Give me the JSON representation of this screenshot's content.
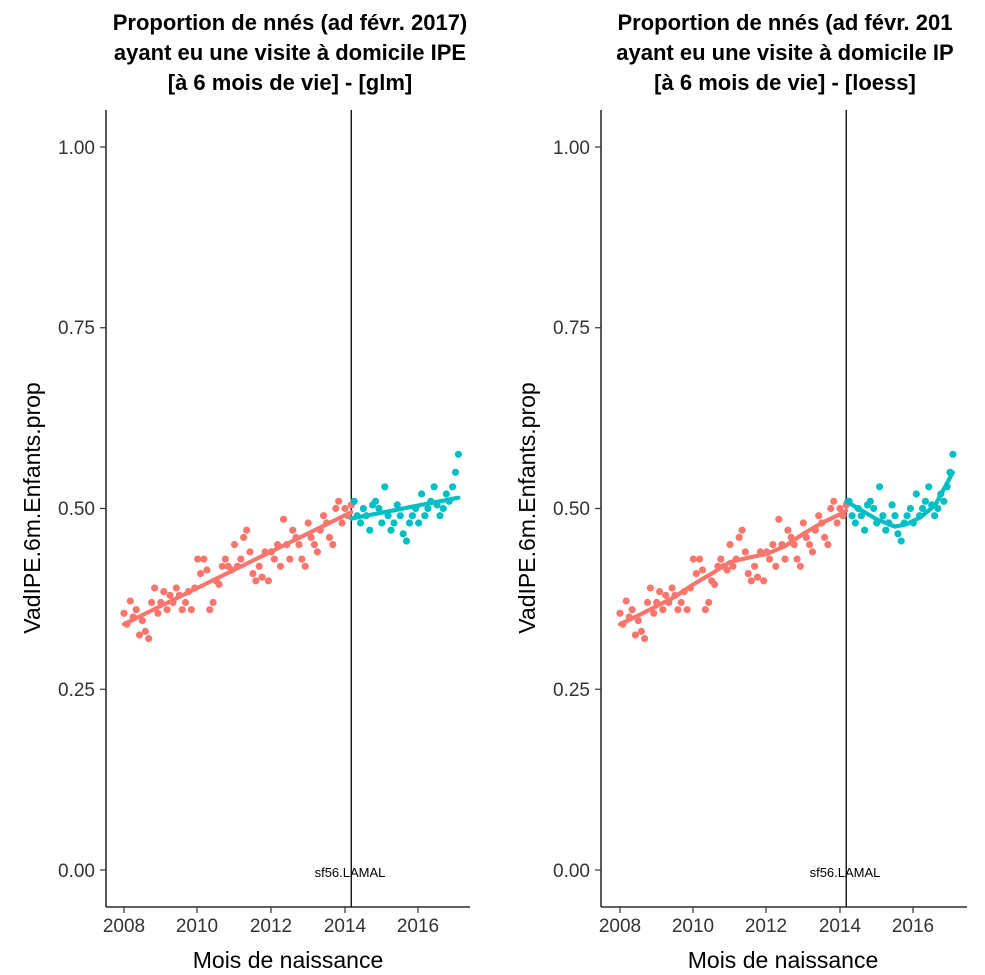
{
  "chart_data": [
    {
      "type": "scatter",
      "title": [
        "Proportion de nnés (ad févr. 2017)",
        "ayant eu une visite à domicile IPE",
        "[à 6 mois de vie] - [glm]"
      ],
      "xlabel": "Mois de naissance",
      "ylabel": "VadIPE.6m.Enfants.prop",
      "xlim": [
        2007.6,
        2017.6
      ],
      "ylim": [
        -0.05,
        1.05
      ],
      "xticks": [
        "2008",
        "2010",
        "2012",
        "2014",
        "2016"
      ],
      "yticks": [
        "0.00",
        "0.25",
        "0.50",
        "0.75",
        "1.00"
      ],
      "grid": false,
      "legend": "none",
      "vline_x": 2014.17,
      "annotation": "sf56.LAMAL",
      "colors": {
        "before": "#F8766D",
        "after": "#00BFC4"
      },
      "series": [
        {
          "points": [
            [
              2008.0,
              0.355
            ],
            [
              2008.08,
              0.34
            ],
            [
              2008.17,
              0.372
            ],
            [
              2008.25,
              0.35
            ],
            [
              2008.33,
              0.36
            ],
            [
              2008.42,
              0.325
            ],
            [
              2008.5,
              0.345
            ],
            [
              2008.58,
              0.33
            ],
            [
              2008.67,
              0.32
            ],
            [
              2008.75,
              0.37
            ],
            [
              2008.83,
              0.39
            ],
            [
              2008.92,
              0.355
            ],
            [
              2009.0,
              0.37
            ],
            [
              2009.08,
              0.385
            ],
            [
              2009.17,
              0.36
            ],
            [
              2009.25,
              0.38
            ],
            [
              2009.33,
              0.37
            ],
            [
              2009.42,
              0.39
            ],
            [
              2009.5,
              0.38
            ],
            [
              2009.58,
              0.36
            ],
            [
              2009.67,
              0.37
            ],
            [
              2009.75,
              0.385
            ],
            [
              2009.83,
              0.36
            ],
            [
              2009.92,
              0.39
            ],
            [
              2010.0,
              0.43
            ],
            [
              2010.08,
              0.41
            ],
            [
              2010.17,
              0.43
            ],
            [
              2010.25,
              0.415
            ],
            [
              2010.33,
              0.36
            ],
            [
              2010.42,
              0.37
            ],
            [
              2010.5,
              0.4
            ],
            [
              2010.58,
              0.395
            ],
            [
              2010.67,
              0.42
            ],
            [
              2010.75,
              0.43
            ],
            [
              2010.83,
              0.42
            ],
            [
              2010.92,
              0.415
            ],
            [
              2011.0,
              0.45
            ],
            [
              2011.08,
              0.42
            ],
            [
              2011.17,
              0.43
            ],
            [
              2011.25,
              0.46
            ],
            [
              2011.33,
              0.47
            ],
            [
              2011.42,
              0.44
            ],
            [
              2011.5,
              0.41
            ],
            [
              2011.58,
              0.4
            ],
            [
              2011.67,
              0.42
            ],
            [
              2011.75,
              0.405
            ],
            [
              2011.83,
              0.44
            ],
            [
              2011.92,
              0.4
            ],
            [
              2012.0,
              0.44
            ],
            [
              2012.08,
              0.43
            ],
            [
              2012.17,
              0.45
            ],
            [
              2012.25,
              0.42
            ],
            [
              2012.33,
              0.485
            ],
            [
              2012.42,
              0.45
            ],
            [
              2012.5,
              0.43
            ],
            [
              2012.58,
              0.47
            ],
            [
              2012.67,
              0.46
            ],
            [
              2012.75,
              0.45
            ],
            [
              2012.83,
              0.43
            ],
            [
              2012.92,
              0.42
            ],
            [
              2013.0,
              0.48
            ],
            [
              2013.08,
              0.46
            ],
            [
              2013.17,
              0.45
            ],
            [
              2013.25,
              0.44
            ],
            [
              2013.33,
              0.47
            ],
            [
              2013.42,
              0.49
            ],
            [
              2013.5,
              0.48
            ],
            [
              2013.58,
              0.46
            ],
            [
              2013.67,
              0.45
            ],
            [
              2013.75,
              0.5
            ],
            [
              2013.83,
              0.51
            ],
            [
              2013.92,
              0.48
            ],
            [
              2014.0,
              0.5
            ],
            [
              2014.08,
              0.49
            ],
            [
              2014.17,
              0.505
            ]
          ]
        },
        {
          "points": [
            [
              2014.25,
              0.51
            ],
            [
              2014.33,
              0.49
            ],
            [
              2014.42,
              0.48
            ],
            [
              2014.5,
              0.5
            ],
            [
              2014.58,
              0.49
            ],
            [
              2014.67,
              0.47
            ],
            [
              2014.75,
              0.505
            ],
            [
              2014.83,
              0.51
            ],
            [
              2014.92,
              0.5
            ],
            [
              2015.0,
              0.48
            ],
            [
              2015.08,
              0.53
            ],
            [
              2015.17,
              0.49
            ],
            [
              2015.25,
              0.47
            ],
            [
              2015.33,
              0.48
            ],
            [
              2015.42,
              0.505
            ],
            [
              2015.5,
              0.49
            ],
            [
              2015.58,
              0.465
            ],
            [
              2015.67,
              0.455
            ],
            [
              2015.75,
              0.48
            ],
            [
              2015.83,
              0.49
            ],
            [
              2015.92,
              0.5
            ],
            [
              2016.0,
              0.48
            ],
            [
              2016.08,
              0.52
            ],
            [
              2016.17,
              0.49
            ],
            [
              2016.25,
              0.5
            ],
            [
              2016.33,
              0.51
            ],
            [
              2016.42,
              0.53
            ],
            [
              2016.5,
              0.505
            ],
            [
              2016.58,
              0.49
            ],
            [
              2016.67,
              0.5
            ],
            [
              2016.75,
              0.52
            ],
            [
              2016.83,
              0.51
            ],
            [
              2016.92,
              0.53
            ],
            [
              2017.0,
              0.55
            ],
            [
              2017.08,
              0.575
            ]
          ]
        }
      ],
      "fit": [
        {
          "x": [
            2008.0,
            2014.17
          ],
          "y": [
            0.34,
            0.495
          ]
        },
        {
          "x": [
            2014.17,
            2017.08
          ],
          "y": [
            0.486,
            0.515
          ]
        }
      ]
    },
    {
      "type": "scatter",
      "title": [
        "Proportion de nnés (ad févr. 201",
        "ayant eu une visite à domicile IP",
        "[à 6 mois de vie] - [loess]"
      ],
      "xlabel": "Mois de naissance",
      "ylabel": "VadIPE.6m.Enfants.prop",
      "xlim": [
        2007.6,
        2017.6
      ],
      "ylim": [
        -0.05,
        1.05
      ],
      "xticks": [
        "2008",
        "2010",
        "2012",
        "2014",
        "2016"
      ],
      "yticks": [
        "0.00",
        "0.25",
        "0.50",
        "0.75",
        "1.00"
      ],
      "grid": false,
      "legend": "none",
      "vline_x": 2014.17,
      "annotation": "sf56.LAMAL",
      "colors": {
        "before": "#F8766D",
        "after": "#00BFC4"
      },
      "series": [
        {
          "points": [
            [
              2008.0,
              0.355
            ],
            [
              2008.08,
              0.34
            ],
            [
              2008.17,
              0.372
            ],
            [
              2008.25,
              0.35
            ],
            [
              2008.33,
              0.36
            ],
            [
              2008.42,
              0.325
            ],
            [
              2008.5,
              0.345
            ],
            [
              2008.58,
              0.33
            ],
            [
              2008.67,
              0.32
            ],
            [
              2008.75,
              0.37
            ],
            [
              2008.83,
              0.39
            ],
            [
              2008.92,
              0.355
            ],
            [
              2009.0,
              0.37
            ],
            [
              2009.08,
              0.385
            ],
            [
              2009.17,
              0.36
            ],
            [
              2009.25,
              0.38
            ],
            [
              2009.33,
              0.37
            ],
            [
              2009.42,
              0.39
            ],
            [
              2009.5,
              0.38
            ],
            [
              2009.58,
              0.36
            ],
            [
              2009.67,
              0.37
            ],
            [
              2009.75,
              0.385
            ],
            [
              2009.83,
              0.36
            ],
            [
              2009.92,
              0.39
            ],
            [
              2010.0,
              0.43
            ],
            [
              2010.08,
              0.41
            ],
            [
              2010.17,
              0.43
            ],
            [
              2010.25,
              0.415
            ],
            [
              2010.33,
              0.36
            ],
            [
              2010.42,
              0.37
            ],
            [
              2010.5,
              0.4
            ],
            [
              2010.58,
              0.395
            ],
            [
              2010.67,
              0.42
            ],
            [
              2010.75,
              0.43
            ],
            [
              2010.83,
              0.42
            ],
            [
              2010.92,
              0.415
            ],
            [
              2011.0,
              0.45
            ],
            [
              2011.08,
              0.42
            ],
            [
              2011.17,
              0.43
            ],
            [
              2011.25,
              0.46
            ],
            [
              2011.33,
              0.47
            ],
            [
              2011.42,
              0.44
            ],
            [
              2011.5,
              0.41
            ],
            [
              2011.58,
              0.4
            ],
            [
              2011.67,
              0.42
            ],
            [
              2011.75,
              0.405
            ],
            [
              2011.83,
              0.44
            ],
            [
              2011.92,
              0.4
            ],
            [
              2012.0,
              0.44
            ],
            [
              2012.08,
              0.43
            ],
            [
              2012.17,
              0.45
            ],
            [
              2012.25,
              0.42
            ],
            [
              2012.33,
              0.485
            ],
            [
              2012.42,
              0.45
            ],
            [
              2012.5,
              0.43
            ],
            [
              2012.58,
              0.47
            ],
            [
              2012.67,
              0.46
            ],
            [
              2012.75,
              0.45
            ],
            [
              2012.83,
              0.43
            ],
            [
              2012.92,
              0.42
            ],
            [
              2013.0,
              0.48
            ],
            [
              2013.08,
              0.46
            ],
            [
              2013.17,
              0.45
            ],
            [
              2013.25,
              0.44
            ],
            [
              2013.33,
              0.47
            ],
            [
              2013.42,
              0.49
            ],
            [
              2013.5,
              0.48
            ],
            [
              2013.58,
              0.46
            ],
            [
              2013.67,
              0.45
            ],
            [
              2013.75,
              0.5
            ],
            [
              2013.83,
              0.51
            ],
            [
              2013.92,
              0.48
            ],
            [
              2014.0,
              0.5
            ],
            [
              2014.08,
              0.49
            ],
            [
              2014.17,
              0.505
            ]
          ]
        },
        {
          "points": [
            [
              2014.25,
              0.51
            ],
            [
              2014.33,
              0.49
            ],
            [
              2014.42,
              0.48
            ],
            [
              2014.5,
              0.5
            ],
            [
              2014.58,
              0.49
            ],
            [
              2014.67,
              0.47
            ],
            [
              2014.75,
              0.505
            ],
            [
              2014.83,
              0.51
            ],
            [
              2014.92,
              0.5
            ],
            [
              2015.0,
              0.48
            ],
            [
              2015.08,
              0.53
            ],
            [
              2015.17,
              0.49
            ],
            [
              2015.25,
              0.47
            ],
            [
              2015.33,
              0.48
            ],
            [
              2015.42,
              0.505
            ],
            [
              2015.5,
              0.49
            ],
            [
              2015.58,
              0.465
            ],
            [
              2015.67,
              0.455
            ],
            [
              2015.75,
              0.48
            ],
            [
              2015.83,
              0.49
            ],
            [
              2015.92,
              0.5
            ],
            [
              2016.0,
              0.48
            ],
            [
              2016.08,
              0.52
            ],
            [
              2016.17,
              0.49
            ],
            [
              2016.25,
              0.5
            ],
            [
              2016.33,
              0.51
            ],
            [
              2016.42,
              0.53
            ],
            [
              2016.5,
              0.505
            ],
            [
              2016.58,
              0.49
            ],
            [
              2016.67,
              0.5
            ],
            [
              2016.75,
              0.52
            ],
            [
              2016.83,
              0.51
            ],
            [
              2016.92,
              0.53
            ],
            [
              2017.0,
              0.55
            ],
            [
              2017.08,
              0.575
            ]
          ]
        }
      ],
      "fit": [
        {
          "x": [
            2008.0,
            2008.5,
            2009.0,
            2009.5,
            2010.0,
            2010.5,
            2011.0,
            2011.5,
            2012.0,
            2012.5,
            2013.0,
            2013.5,
            2014.0,
            2014.17
          ],
          "y": [
            0.34,
            0.352,
            0.365,
            0.378,
            0.395,
            0.41,
            0.426,
            0.432,
            0.437,
            0.448,
            0.465,
            0.48,
            0.492,
            0.497
          ]
        },
        {
          "x": [
            2014.17,
            2014.5,
            2015.0,
            2015.5,
            2015.8,
            2016.2,
            2016.6,
            2017.08
          ],
          "y": [
            0.51,
            0.5,
            0.485,
            0.475,
            0.478,
            0.488,
            0.505,
            0.55
          ]
        }
      ]
    }
  ]
}
